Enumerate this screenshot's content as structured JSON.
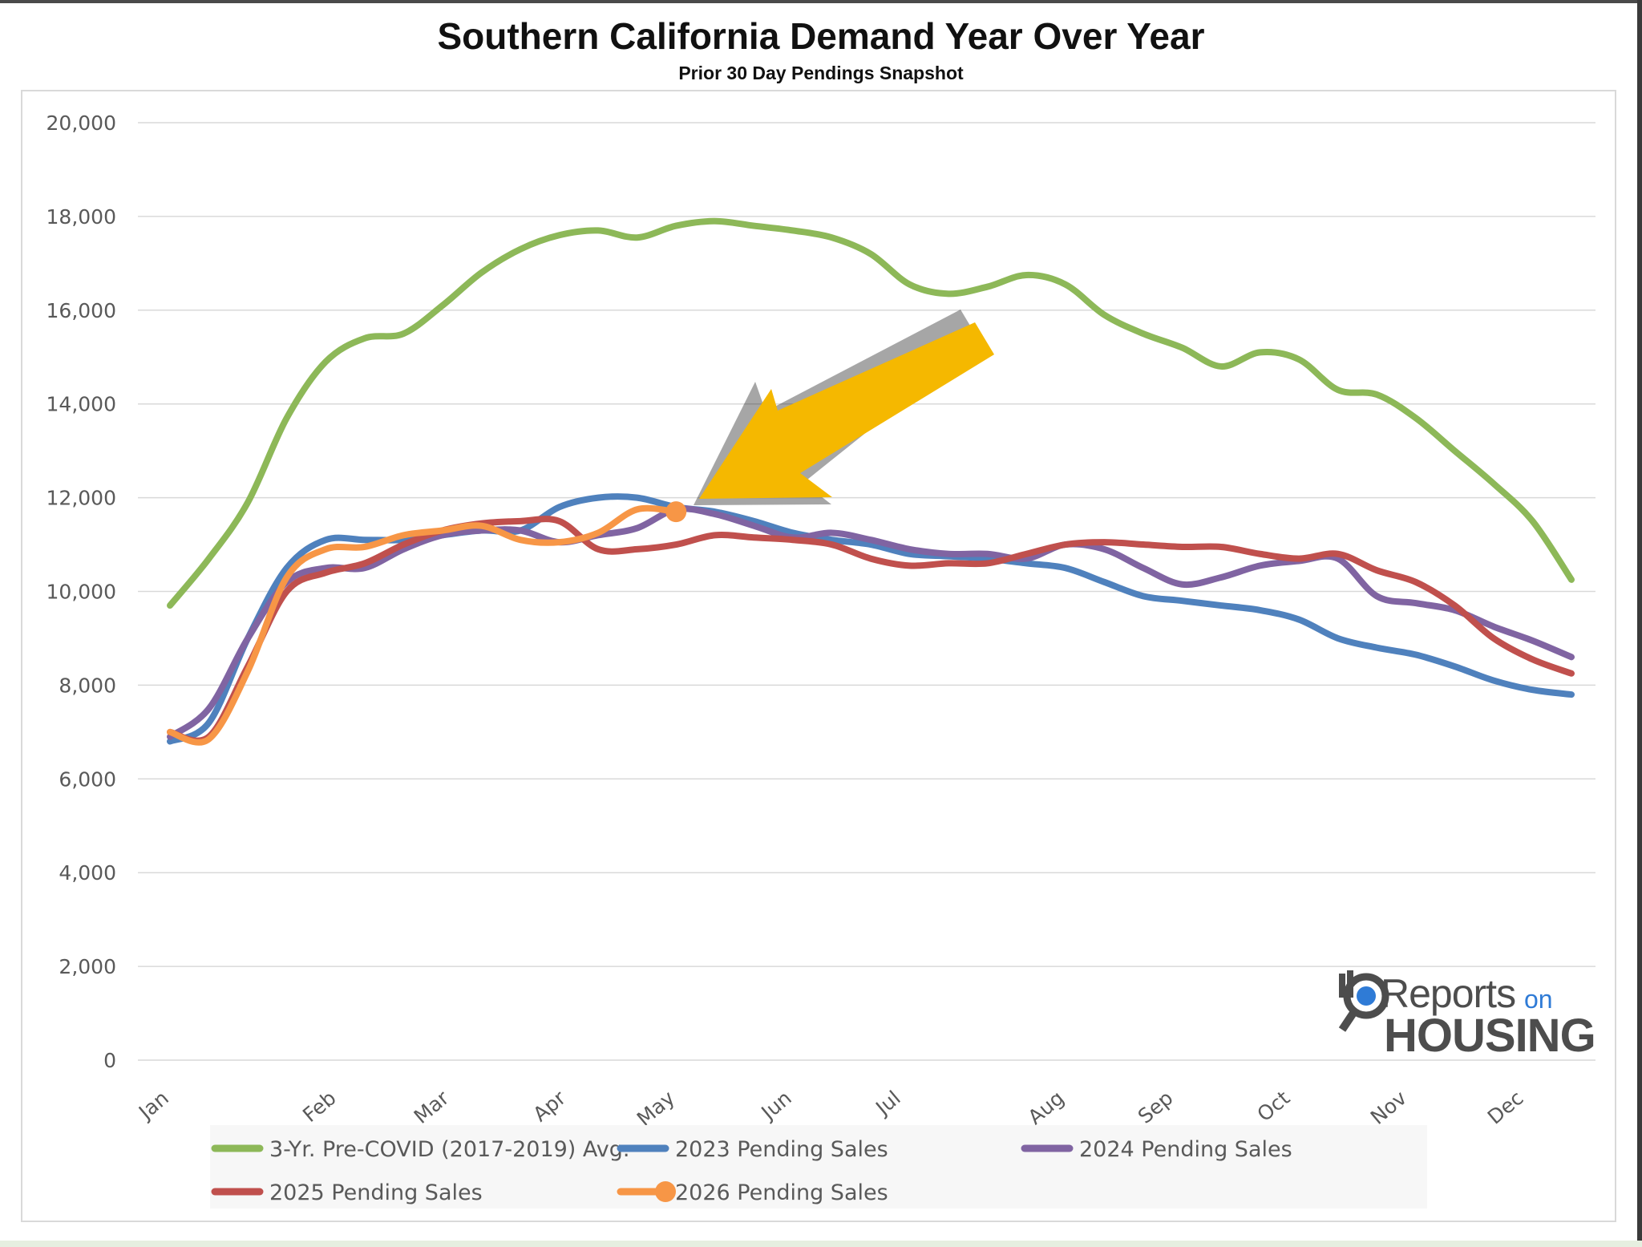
{
  "chart_data": {
    "type": "line",
    "title": "Southern California Demand Year Over Year",
    "subtitle": "Prior 30 Day Pendings Snapshot",
    "xlabel": "",
    "ylabel": "",
    "ylim": [
      0,
      20000
    ],
    "y_ticks": [
      0,
      2000,
      4000,
      6000,
      8000,
      10000,
      12000,
      14000,
      16000,
      18000,
      20000
    ],
    "y_tick_labels": [
      "0",
      "2,000",
      "4,000",
      "6,000",
      "8,000",
      "10,000",
      "12,000",
      "14,000",
      "16,000",
      "18,000",
      "20,000"
    ],
    "categories": [
      "Jan",
      "Feb",
      "Mar",
      "Apr",
      "May",
      "Jun",
      "Jul",
      "Aug",
      "Sep",
      "Oct",
      "Nov",
      "Dec"
    ],
    "x_labels": [
      {
        "label": "Jan",
        "x": 0
      },
      {
        "label": "Feb",
        "x": 4.3
      },
      {
        "label": "Mar",
        "x": 7.2
      },
      {
        "label": "Apr",
        "x": 10.2
      },
      {
        "label": "May",
        "x": 13.0
      },
      {
        "label": "Jun",
        "x": 16.0
      },
      {
        "label": "Jul",
        "x": 18.8
      },
      {
        "label": "Aug",
        "x": 23.0
      },
      {
        "label": "Sep",
        "x": 25.8
      },
      {
        "label": "Oct",
        "x": 28.8
      },
      {
        "label": "Nov",
        "x": 31.8
      },
      {
        "label": "Dec",
        "x": 34.8
      }
    ],
    "grid": true,
    "legend_position": "bottom",
    "series": [
      {
        "name": "3-Yr. Pre-COVID (2017-2019) Avg.",
        "color": "#8db858",
        "x": [
          0,
          1,
          2,
          3,
          4,
          5,
          6,
          7,
          8,
          9,
          10,
          11,
          12,
          13,
          14,
          15,
          16,
          17,
          18,
          19,
          20,
          21,
          22,
          23,
          24,
          25,
          26,
          27,
          28,
          29,
          30,
          31,
          32,
          33,
          34,
          35,
          36
        ],
        "values": [
          9700,
          10700,
          11900,
          13700,
          14900,
          15400,
          15500,
          16100,
          16800,
          17300,
          17600,
          17700,
          17550,
          17800,
          17900,
          17800,
          17700,
          17550,
          17200,
          16550,
          16350,
          16500,
          16750,
          16550,
          15900,
          15500,
          15200,
          14800,
          15100,
          14950,
          14300,
          14200,
          13700,
          13000,
          12300,
          11500,
          10250
        ]
      },
      {
        "name": "2023 Pending Sales",
        "color": "#4f81bd",
        "x": [
          0,
          1,
          2,
          3,
          4,
          5,
          6,
          7,
          8,
          9,
          10,
          11,
          12,
          13,
          14,
          15,
          16,
          17,
          18,
          19,
          20,
          21,
          22,
          23,
          24,
          25,
          26,
          27,
          28,
          29,
          30,
          31,
          32,
          33,
          34,
          35,
          36
        ],
        "values": [
          6800,
          7200,
          9000,
          10500,
          11100,
          11100,
          11100,
          11200,
          11300,
          11300,
          11800,
          12000,
          12000,
          11800,
          11700,
          11500,
          11250,
          11100,
          11000,
          10800,
          10750,
          10700,
          10600,
          10500,
          10200,
          9900,
          9800,
          9700,
          9600,
          9400,
          9000,
          8800,
          8650,
          8400,
          8100,
          7900,
          7800
        ]
      },
      {
        "name": "2024 Pending Sales",
        "color": "#8064a2",
        "x": [
          0,
          1,
          2,
          3,
          4,
          5,
          6,
          7,
          8,
          9,
          10,
          11,
          12,
          13,
          14,
          15,
          16,
          17,
          18,
          19,
          20,
          21,
          22,
          23,
          24,
          25,
          26,
          27,
          28,
          29,
          30,
          31,
          32,
          33,
          34,
          35,
          36
        ],
        "values": [
          6900,
          7500,
          9000,
          10200,
          10500,
          10500,
          10900,
          11200,
          11300,
          11300,
          11050,
          11200,
          11350,
          11750,
          11650,
          11400,
          11150,
          11250,
          11100,
          10900,
          10800,
          10800,
          10700,
          11000,
          10900,
          10500,
          10150,
          10300,
          10550,
          10650,
          10700,
          9900,
          9750,
          9600,
          9250,
          8950,
          8600
        ]
      },
      {
        "name": "2025 Pending Sales",
        "color": "#c0504d",
        "x": [
          0,
          1,
          2,
          3,
          4,
          5,
          6,
          7,
          8,
          9,
          10,
          11,
          12,
          13,
          14,
          15,
          16,
          17,
          18,
          19,
          20,
          21,
          22,
          23,
          24,
          25,
          26,
          27,
          28,
          29,
          30,
          31,
          32,
          33,
          34,
          35,
          36
        ],
        "values": [
          7000,
          6900,
          8400,
          10000,
          10400,
          10600,
          11000,
          11300,
          11450,
          11500,
          11500,
          10900,
          10900,
          11000,
          11200,
          11150,
          11100,
          11000,
          10700,
          10550,
          10600,
          10600,
          10800,
          11000,
          11050,
          11000,
          10950,
          10950,
          10800,
          10700,
          10800,
          10450,
          10200,
          9700,
          9000,
          8550,
          8250
        ]
      },
      {
        "name": "2026 Pending Sales",
        "color": "#f79646",
        "x": [
          0,
          1,
          2,
          3,
          4,
          5,
          6,
          7,
          8,
          9,
          10,
          11,
          12,
          13
        ],
        "values": [
          7000,
          6850,
          8300,
          10300,
          10900,
          10950,
          11200,
          11300,
          11400,
          11100,
          11050,
          11250,
          11750,
          11700
        ],
        "last_point_marker": true
      }
    ]
  },
  "brand": {
    "reports": "Reports",
    "on": "on",
    "housing": "HOUSING"
  },
  "colors": {
    "arrow": "#f5b800",
    "grid": "#d9d9d9",
    "axis_text": "#595959"
  }
}
